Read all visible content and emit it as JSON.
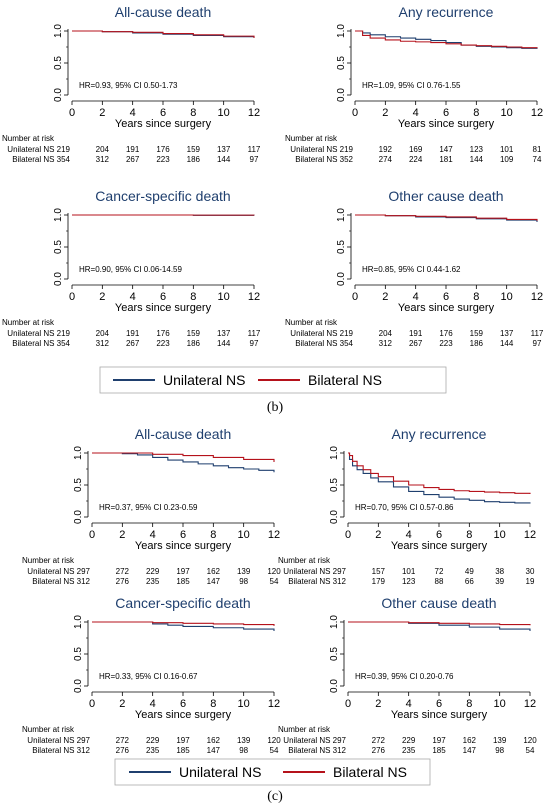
{
  "panels": [
    {
      "id": "b",
      "caption": "(b)",
      "legend": [
        {
          "label": "Unilateral NS",
          "color": "#1f3f6e"
        },
        {
          "label": "Bilateral NS",
          "color": "#b5121b"
        }
      ],
      "charts": [
        {
          "type": "line",
          "title": "All-cause death",
          "xlabel": "Years since surgery",
          "xlim": [
            0,
            12
          ],
          "ylim": [
            0,
            1
          ],
          "xticks": [
            "0",
            "2",
            "4",
            "6",
            "8",
            "10",
            "12"
          ],
          "yticks": [
            "0.0",
            "0.5",
            "1.0"
          ],
          "annotation": "HR=0.93, 95% CI 0.50-1.73",
          "series": [
            {
              "name": "Unilateral NS",
              "color": "#1f3f6e",
              "x": [
                0,
                2,
                4,
                6,
                8,
                10,
                12
              ],
              "y": [
                1.0,
                0.99,
                0.97,
                0.95,
                0.93,
                0.91,
                0.9
              ]
            },
            {
              "name": "Bilateral NS",
              "color": "#b5121b",
              "x": [
                0,
                2,
                4,
                6,
                8,
                10,
                12
              ],
              "y": [
                1.0,
                0.99,
                0.98,
                0.96,
                0.94,
                0.92,
                0.89
              ]
            }
          ],
          "risk_title": "Number at risk",
          "risk_rows": [
            {
              "label": "Unilateral NS 219",
              "values": [
                "204",
                "191",
                "176",
                "159",
                "137",
                "117"
              ]
            },
            {
              "label": "Bilateral NS 354",
              "values": [
                "312",
                "267",
                "223",
                "186",
                "144",
                "97"
              ]
            }
          ]
        },
        {
          "type": "line",
          "title": "Any recurrence",
          "xlabel": "Years since surgery",
          "xlim": [
            0,
            12
          ],
          "ylim": [
            0,
            1
          ],
          "xticks": [
            "0",
            "2",
            "4",
            "6",
            "8",
            "10",
            "12"
          ],
          "yticks": [
            "0.0",
            "0.5",
            "1.0"
          ],
          "annotation": "HR=1.09, 95% CI 0.76-1.55",
          "series": [
            {
              "name": "Unilateral NS",
              "color": "#1f3f6e",
              "x": [
                0,
                0.5,
                1,
                2,
                3,
                4,
                5,
                6,
                7,
                8,
                9,
                10,
                11,
                12
              ],
              "y": [
                1.0,
                0.97,
                0.94,
                0.91,
                0.89,
                0.87,
                0.85,
                0.82,
                0.78,
                0.76,
                0.75,
                0.74,
                0.73,
                0.72
              ]
            },
            {
              "name": "Bilateral NS",
              "color": "#b5121b",
              "x": [
                0,
                0.5,
                1,
                2,
                3,
                4,
                5,
                6,
                7,
                8,
                9,
                10,
                11,
                12
              ],
              "y": [
                1.0,
                0.93,
                0.89,
                0.86,
                0.84,
                0.83,
                0.82,
                0.8,
                0.78,
                0.77,
                0.76,
                0.75,
                0.74,
                0.73
              ]
            }
          ],
          "risk_title": "Number at risk",
          "risk_rows": [
            {
              "label": "Unilateral NS 219",
              "values": [
                "192",
                "169",
                "147",
                "123",
                "101",
                "81"
              ]
            },
            {
              "label": "Bilateral NS 352",
              "values": [
                "274",
                "224",
                "181",
                "144",
                "109",
                "74"
              ]
            }
          ]
        },
        {
          "type": "line",
          "title": "Cancer-specific death",
          "xlabel": "Years since surgery",
          "xlim": [
            0,
            12
          ],
          "ylim": [
            0,
            1
          ],
          "xticks": [
            "0",
            "2",
            "4",
            "6",
            "8",
            "10",
            "12"
          ],
          "yticks": [
            "0.0",
            "0.5",
            "1.0"
          ],
          "annotation": "HR=0.90, 95% CI 0.06-14.59",
          "series": [
            {
              "name": "Unilateral NS",
              "color": "#1f3f6e",
              "x": [
                0,
                4,
                8,
                12
              ],
              "y": [
                1.0,
                1.0,
                0.995,
                0.99
              ]
            },
            {
              "name": "Bilateral NS",
              "color": "#b5121b",
              "x": [
                0,
                4,
                8,
                12
              ],
              "y": [
                1.0,
                1.0,
                0.998,
                0.995
              ]
            }
          ],
          "risk_title": "Number at risk",
          "risk_rows": [
            {
              "label": "Unilateral NS 219",
              "values": [
                "204",
                "191",
                "176",
                "159",
                "137",
                "117"
              ]
            },
            {
              "label": "Bilateral NS 354",
              "values": [
                "312",
                "267",
                "223",
                "186",
                "144",
                "97"
              ]
            }
          ]
        },
        {
          "type": "line",
          "title": "Other cause death",
          "xlabel": "Years since surgery",
          "xlim": [
            0,
            12
          ],
          "ylim": [
            0,
            1
          ],
          "xticks": [
            "0",
            "2",
            "4",
            "6",
            "8",
            "10",
            "12"
          ],
          "yticks": [
            "0.0",
            "0.5",
            "1.0"
          ],
          "annotation": "HR=0.85, 95% CI 0.44-1.62",
          "series": [
            {
              "name": "Unilateral NS",
              "color": "#1f3f6e",
              "x": [
                0,
                2,
                4,
                6,
                8,
                10,
                12
              ],
              "y": [
                1.0,
                0.99,
                0.97,
                0.96,
                0.94,
                0.92,
                0.89
              ]
            },
            {
              "name": "Bilateral NS",
              "color": "#b5121b",
              "x": [
                0,
                2,
                4,
                6,
                8,
                10,
                12
              ],
              "y": [
                1.0,
                0.99,
                0.98,
                0.97,
                0.95,
                0.93,
                0.91
              ]
            }
          ],
          "risk_title": "Number at risk",
          "risk_rows": [
            {
              "label": "Unilateral NS 219",
              "values": [
                "204",
                "191",
                "176",
                "159",
                "137",
                "117"
              ]
            },
            {
              "label": "Bilateral NS 354",
              "values": [
                "312",
                "267",
                "223",
                "186",
                "144",
                "97"
              ]
            }
          ]
        }
      ]
    },
    {
      "id": "c",
      "caption": "(c)",
      "legend": [
        {
          "label": "Unilateral NS",
          "color": "#1f3f6e"
        },
        {
          "label": "Bilateral NS",
          "color": "#b5121b"
        }
      ],
      "charts": [
        {
          "type": "line",
          "title": "All-cause death",
          "xlabel": "Years since surgery",
          "xlim": [
            0,
            12
          ],
          "ylim": [
            0,
            1
          ],
          "xticks": [
            "0",
            "2",
            "4",
            "6",
            "8",
            "10",
            "12"
          ],
          "yticks": [
            "0.0",
            "0.5",
            "1.0"
          ],
          "annotation": "HR=0.37, 95% CI 0.23-0.59",
          "series": [
            {
              "name": "Unilateral NS",
              "color": "#1f3f6e",
              "x": [
                0,
                2,
                3,
                4,
                5,
                6,
                7,
                8,
                9,
                10,
                11,
                12
              ],
              "y": [
                1.0,
                0.99,
                0.97,
                0.93,
                0.89,
                0.86,
                0.83,
                0.8,
                0.77,
                0.75,
                0.73,
                0.7
              ]
            },
            {
              "name": "Bilateral NS",
              "color": "#b5121b",
              "x": [
                0,
                2,
                4,
                6,
                8,
                10,
                12
              ],
              "y": [
                1.0,
                1.0,
                0.98,
                0.96,
                0.93,
                0.9,
                0.86
              ]
            }
          ],
          "risk_title": "Number at risk",
          "risk_rows": [
            {
              "label": "Unilateral NS 297",
              "values": [
                "272",
                "229",
                "197",
                "162",
                "139",
                "120"
              ]
            },
            {
              "label": "Bilateral NS 312",
              "values": [
                "276",
                "235",
                "185",
                "147",
                "98",
                "54"
              ]
            }
          ]
        },
        {
          "type": "line",
          "title": "Any recurrence",
          "xlabel": "Years since surgery",
          "xlim": [
            0,
            12
          ],
          "ylim": [
            0,
            1
          ],
          "xticks": [
            "0",
            "2",
            "4",
            "6",
            "8",
            "10",
            "12"
          ],
          "yticks": [
            "0.0",
            "0.5",
            "1.0"
          ],
          "annotation": "HR=0.70, 95% CI 0.57-0.86",
          "series": [
            {
              "name": "Unilateral NS",
              "color": "#1f3f6e",
              "x": [
                0,
                0.1,
                0.3,
                0.6,
                1,
                1.5,
                2,
                3,
                4,
                5,
                6,
                7,
                8,
                9,
                10,
                11,
                12
              ],
              "y": [
                1.0,
                0.9,
                0.8,
                0.74,
                0.68,
                0.61,
                0.55,
                0.47,
                0.4,
                0.35,
                0.31,
                0.28,
                0.26,
                0.24,
                0.23,
                0.22,
                0.21
              ]
            },
            {
              "name": "Bilateral NS",
              "color": "#b5121b",
              "x": [
                0,
                0.1,
                0.3,
                0.6,
                1,
                1.5,
                2,
                3,
                4,
                5,
                6,
                7,
                8,
                9,
                10,
                11,
                12
              ],
              "y": [
                1.0,
                0.96,
                0.87,
                0.8,
                0.74,
                0.68,
                0.63,
                0.56,
                0.5,
                0.46,
                0.43,
                0.41,
                0.4,
                0.39,
                0.38,
                0.37,
                0.36
              ]
            }
          ],
          "risk_title": "Number at risk",
          "risk_rows": [
            {
              "label": "Unilateral NS 297",
              "values": [
                "157",
                "101",
                "72",
                "49",
                "38",
                "30"
              ]
            },
            {
              "label": "Bilateral NS 312",
              "values": [
                "179",
                "123",
                "88",
                "66",
                "39",
                "19"
              ]
            }
          ]
        },
        {
          "type": "line",
          "title": "Cancer-specific death",
          "xlabel": "Years since surgery",
          "xlim": [
            0,
            12
          ],
          "ylim": [
            0,
            1
          ],
          "xticks": [
            "0",
            "2",
            "4",
            "6",
            "8",
            "10",
            "12"
          ],
          "yticks": [
            "0.0",
            "0.5",
            "1.0"
          ],
          "annotation": "HR=0.33, 95% CI 0.16-0.67",
          "series": [
            {
              "name": "Unilateral NS",
              "color": "#1f3f6e",
              "x": [
                0,
                2,
                4,
                5,
                6,
                8,
                10,
                12
              ],
              "y": [
                1.0,
                1.0,
                0.97,
                0.95,
                0.93,
                0.91,
                0.89,
                0.86
              ]
            },
            {
              "name": "Bilateral NS",
              "color": "#b5121b",
              "x": [
                0,
                2,
                4,
                6,
                8,
                10,
                12
              ],
              "y": [
                1.0,
                1.0,
                0.99,
                0.98,
                0.97,
                0.96,
                0.94
              ]
            }
          ],
          "risk_title": "Number at risk",
          "risk_rows": [
            {
              "label": "Unilateral NS 297",
              "values": [
                "272",
                "229",
                "197",
                "162",
                "139",
                "120"
              ]
            },
            {
              "label": "Bilateral NS 312",
              "values": [
                "276",
                "235",
                "185",
                "147",
                "98",
                "54"
              ]
            }
          ]
        },
        {
          "type": "line",
          "title": "Other cause death",
          "xlabel": "Years since surgery",
          "xlim": [
            0,
            12
          ],
          "ylim": [
            0,
            1
          ],
          "xticks": [
            "0",
            "2",
            "4",
            "6",
            "8",
            "10",
            "12"
          ],
          "yticks": [
            "0.0",
            "0.5",
            "1.0"
          ],
          "annotation": "HR=0.39, 95% CI 0.20-0.76",
          "series": [
            {
              "name": "Unilateral NS",
              "color": "#1f3f6e",
              "x": [
                0,
                2,
                4,
                6,
                8,
                10,
                12
              ],
              "y": [
                1.0,
                1.0,
                0.98,
                0.95,
                0.92,
                0.89,
                0.86
              ]
            },
            {
              "name": "Bilateral NS",
              "color": "#b5121b",
              "x": [
                0,
                2,
                4,
                6,
                8,
                10,
                12
              ],
              "y": [
                1.0,
                1.0,
                0.99,
                0.98,
                0.97,
                0.96,
                0.95
              ]
            }
          ],
          "risk_title": "Number at risk",
          "risk_rows": [
            {
              "label": "Unilateral NS 297",
              "values": [
                "272",
                "229",
                "197",
                "162",
                "139",
                "120"
              ]
            },
            {
              "label": "Bilateral NS 312",
              "values": [
                "276",
                "235",
                "185",
                "147",
                "98",
                "54"
              ]
            }
          ]
        }
      ]
    }
  ]
}
